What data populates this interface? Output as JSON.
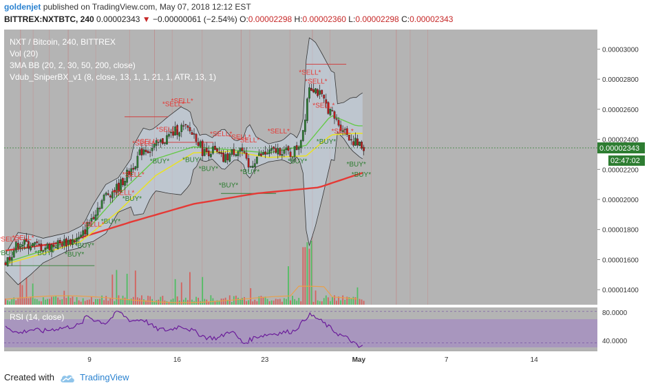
{
  "header": {
    "user": "goldenjet",
    "published": "published on TradingView.com, May 07, 2018 12:12 EST",
    "symbol": "BITTREX:NXTBTC, 240",
    "last": "0.00002343",
    "down_icon": "triangle-down-icon",
    "change": "−0.00000061 (−2.54%)",
    "o_label": "O:",
    "o_value": "0.00002298",
    "h_label": "H:",
    "h_value": "0.00002360",
    "l_label": "L:",
    "l_value": "0.00002298",
    "c_label": "C:",
    "c_value": "0.00002343"
  },
  "legend": {
    "title": "NXT / Bitcoin, 240, BITTREX",
    "vol": "Vol (20)",
    "bb": "3MA BB (20, 2, 30, 50, 200, close)",
    "sniper": "Vdub_SniperBX_v1 (8, close, 13, 1, 1, 21, 1, ATR, 13, 1)",
    "rsi": "RSI (14, close)"
  },
  "price_label": "0.00002343",
  "countdown_label": "02:47:02",
  "rsi_ticks": [
    "80.0000",
    "40.0000"
  ],
  "footer": {
    "created": "Created with",
    "brand": "TradingView",
    "logo_icon": "tradingview-cloud-icon"
  },
  "colors": {
    "panel": "#b4b4b4",
    "rsi_band": "#a58fc0",
    "rsi_line": "#6a1b9a",
    "up": "#2e7d32",
    "down": "#b71c1c",
    "ma200": "#e53935",
    "ma50": "#e7e02b",
    "ma30": "#66c94a",
    "sell": "#e53935",
    "buy": "#2e7d32",
    "price_tag": "#2e7d32"
  },
  "chart_data": {
    "type": "candlestick",
    "yaxis": {
      "ticks": [
        "0.00003000",
        "0.00002800",
        "0.00002600",
        "0.00002400",
        "0.00002200",
        "0.00002000",
        "0.00001800",
        "0.00001600",
        "0.00001400"
      ],
      "ylim": [
        1.3e-05,
        3.13e-05
      ]
    },
    "xaxis": {
      "labels": [
        "9",
        "16",
        "23",
        "May",
        "7",
        "14"
      ]
    },
    "close_path": [
      {
        "d": 0.0,
        "v": 1.58
      },
      {
        "d": 1.0,
        "v": 1.71
      },
      {
        "d": 2.0,
        "v": 1.7
      },
      {
        "d": 3.0,
        "v": 1.68
      },
      {
        "d": 4.0,
        "v": 1.7
      },
      {
        "d": 5.0,
        "v": 1.72
      },
      {
        "d": 6.0,
        "v": 1.74
      },
      {
        "d": 7.0,
        "v": 1.9
      },
      {
        "d": 8.0,
        "v": 2.03
      },
      {
        "d": 9.0,
        "v": 2.08
      },
      {
        "d": 10.0,
        "v": 2.2
      },
      {
        "d": 11.0,
        "v": 2.34
      },
      {
        "d": 11.6,
        "v": 2.33
      },
      {
        "d": 12.4,
        "v": 2.38
      },
      {
        "d": 13.0,
        "v": 2.42
      },
      {
        "d": 14.0,
        "v": 2.48
      },
      {
        "d": 14.6,
        "v": 2.46
      },
      {
        "d": 15.2,
        "v": 2.42
      },
      {
        "d": 15.8,
        "v": 2.31
      },
      {
        "d": 16.5,
        "v": 2.33
      },
      {
        "d": 17.4,
        "v": 2.26
      },
      {
        "d": 18.2,
        "v": 2.32
      },
      {
        "d": 18.8,
        "v": 2.34
      },
      {
        "d": 19.4,
        "v": 2.2
      },
      {
        "d": 20.0,
        "v": 2.28
      },
      {
        "d": 21.0,
        "v": 2.31
      },
      {
        "d": 22.0,
        "v": 2.33
      },
      {
        "d": 22.8,
        "v": 2.3
      },
      {
        "d": 23.4,
        "v": 2.36
      },
      {
        "d": 23.8,
        "v": 2.48
      },
      {
        "d": 24.2,
        "v": 2.76
      },
      {
        "d": 24.7,
        "v": 2.74
      },
      {
        "d": 25.2,
        "v": 2.68
      },
      {
        "d": 25.8,
        "v": 2.6
      },
      {
        "d": 26.4,
        "v": 2.52
      },
      {
        "d": 27.0,
        "v": 2.47
      },
      {
        "d": 27.6,
        "v": 2.4
      },
      {
        "d": 28.2,
        "v": 2.36
      },
      {
        "d": 28.6,
        "v": 2.34
      }
    ],
    "series": [
      {
        "name": "MA 200",
        "points": [
          [
            0,
            1.66
          ],
          [
            5,
            1.72
          ],
          [
            10,
            1.85
          ],
          [
            15,
            1.97
          ],
          [
            20,
            2.04
          ],
          [
            25,
            2.08
          ],
          [
            28.6,
            2.18
          ]
        ]
      },
      {
        "name": "MA 50",
        "points": [
          [
            0,
            1.57
          ],
          [
            3,
            1.64
          ],
          [
            6,
            1.72
          ],
          [
            9,
            1.92
          ],
          [
            12,
            2.16
          ],
          [
            15,
            2.31
          ],
          [
            18,
            2.32
          ],
          [
            21,
            2.28
          ],
          [
            24,
            2.29
          ],
          [
            26,
            2.43
          ],
          [
            28,
            2.44
          ]
        ]
      },
      {
        "name": "MA 30",
        "points": [
          [
            0,
            1.58
          ],
          [
            3,
            1.66
          ],
          [
            6,
            1.75
          ],
          [
            9,
            2.03
          ],
          [
            12,
            2.27
          ],
          [
            15,
            2.35
          ],
          [
            18,
            2.33
          ],
          [
            21,
            2.31
          ],
          [
            24,
            2.36
          ],
          [
            26,
            2.56
          ],
          [
            28,
            2.49
          ]
        ]
      }
    ],
    "rsi": {
      "ylim": [
        30,
        85
      ],
      "values": [
        [
          0,
          62
        ],
        [
          1,
          52
        ],
        [
          2,
          57
        ],
        [
          3,
          55
        ],
        [
          4,
          58
        ],
        [
          5,
          60
        ],
        [
          6,
          63
        ],
        [
          6.5,
          75
        ],
        [
          7,
          70
        ],
        [
          8,
          65
        ],
        [
          9,
          80
        ],
        [
          10,
          68
        ],
        [
          11,
          70
        ],
        [
          12,
          58
        ],
        [
          13,
          56
        ],
        [
          14,
          62
        ],
        [
          15,
          55
        ],
        [
          16,
          47
        ],
        [
          17,
          46
        ],
        [
          18,
          56
        ],
        [
          19,
          39
        ],
        [
          20,
          48
        ],
        [
          21,
          51
        ],
        [
          22,
          53
        ],
        [
          23,
          55
        ],
        [
          23.7,
          66
        ],
        [
          24.2,
          76
        ],
        [
          24.8,
          72
        ],
        [
          25.5,
          64
        ],
        [
          26.5,
          52
        ],
        [
          27.5,
          44
        ],
        [
          28.2,
          34
        ],
        [
          28.6,
          38
        ]
      ]
    }
  }
}
